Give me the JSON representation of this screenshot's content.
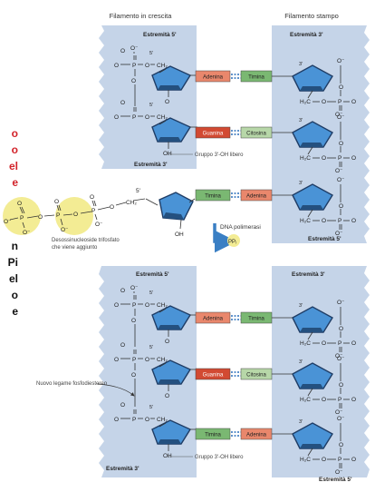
{
  "headers": {
    "growing": "Filamento in crescita",
    "template": "Filamento stampo"
  },
  "ends": {
    "e5": "Estremità 5'",
    "e3": "Estremità 3'"
  },
  "marks": {
    "p5": "5'",
    "p3": "3'"
  },
  "chem": {
    "O": "O",
    "Ominus": "O⁻",
    "P": "P",
    "CH2": "CH₂",
    "H2C": "H₂C",
    "OH": "OH"
  },
  "bases": {
    "adenina": "Adenina",
    "timina": "Timina",
    "guanina": "Guanina",
    "citosina": "Citosina"
  },
  "labels": {
    "oh_free": "Gruppo 3'-OH libero",
    "nucleotide": [
      "Desossinucleoside trifosfato",
      "che viene aggiunto"
    ],
    "polymerase": "DNA polimerasi",
    "ppi": "PPᵢ",
    "bond": "Nuovo legame fosfodiestereo"
  },
  "side_text": {
    "red": [
      "o",
      "o",
      "el",
      "e"
    ],
    "black": [
      "n",
      "Pi",
      "el",
      "o",
      "e"
    ]
  },
  "colors": {
    "strand": "#c5d4e8",
    "sugar": "#4a93d6",
    "adenina": "#e9876c",
    "timina": "#7ab872",
    "guanina": "#d24a32",
    "citosina": "#b7d7a8",
    "phosphate": "#f3ec94",
    "accent": "#d2232a"
  }
}
